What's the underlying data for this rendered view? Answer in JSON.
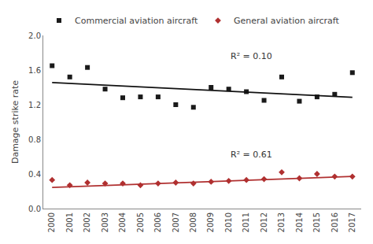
{
  "chart_data": {
    "type": "scatter",
    "y_label": "Damage strike rate",
    "x": [
      2000,
      2001,
      2002,
      2003,
      2004,
      2005,
      2006,
      2007,
      2008,
      2009,
      2010,
      2011,
      2012,
      2013,
      2014,
      2015,
      2016,
      2017
    ],
    "series": [
      {
        "name": "Commercial aviation aircraft",
        "color": "#1a1a1a",
        "marker": "square",
        "values": [
          1.65,
          1.52,
          1.63,
          1.38,
          1.28,
          1.29,
          1.29,
          1.2,
          1.17,
          1.4,
          1.38,
          1.35,
          1.25,
          1.52,
          1.24,
          1.29,
          1.32,
          1.57
        ]
      },
      {
        "name": "General aviation aircraft",
        "color": "#b03030",
        "marker": "diamond",
        "values": [
          0.33,
          0.27,
          0.3,
          0.29,
          0.29,
          0.27,
          0.29,
          0.3,
          0.29,
          0.31,
          0.32,
          0.33,
          0.34,
          0.42,
          0.35,
          0.4,
          0.37,
          0.37
        ]
      },
      {
        "type": "line",
        "color": "#111111",
        "x": [
          2000,
          2017
        ],
        "values": [
          1.455,
          1.285
        ]
      },
      {
        "type": "line",
        "color": "#b03030",
        "x": [
          2000,
          2017
        ],
        "values": [
          0.245,
          0.372
        ]
      }
    ],
    "annotations": [
      {
        "text": "R² = 0.10",
        "x": 2010.0,
        "y": 1.68
      },
      {
        "text": "R² = 0.61",
        "x": 2010.0,
        "y": 0.55
      }
    ],
    "xlim": [
      1999.5,
      2017.5
    ],
    "xticks": [
      2000,
      2001,
      2002,
      2003,
      2004,
      2005,
      2006,
      2007,
      2008,
      2009,
      2010,
      2011,
      2012,
      2013,
      2014,
      2015,
      2016,
      2017
    ],
    "ylim": [
      0.0,
      2.0
    ],
    "yticks": [
      {
        "value": 0,
        "label": "0.0"
      },
      0.4,
      0.8,
      1.2,
      1.6,
      {
        "value": 2,
        "label": "2.0"
      }
    ],
    "grid": false,
    "legend": "upper left"
  }
}
